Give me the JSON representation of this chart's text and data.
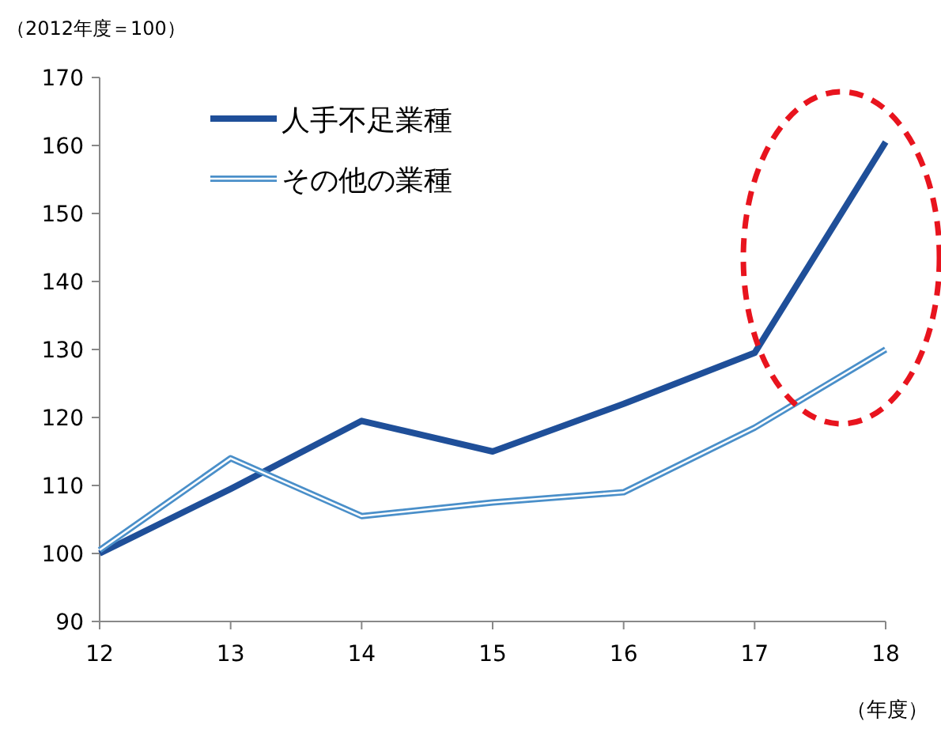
{
  "chart_data": {
    "type": "line",
    "ylabel": "（2012年度＝100）",
    "xlabel": "（年度）",
    "categories": [
      "12",
      "13",
      "14",
      "15",
      "16",
      "17",
      "18"
    ],
    "series": [
      {
        "name": "人手不足業種",
        "color": "#1f4f99",
        "values": [
          100,
          109.5,
          119.5,
          115,
          122,
          129.5,
          160.5
        ]
      },
      {
        "name": "その他の業種",
        "color": "#4a8fc9",
        "values": [
          100.5,
          114,
          105.5,
          107.5,
          109,
          118.5,
          130
        ]
      }
    ],
    "ylim": [
      90,
      170
    ],
    "yticks": [
      90,
      100,
      110,
      120,
      130,
      140,
      150,
      160,
      170
    ],
    "grid": false,
    "legend": "top left",
    "marker": "none",
    "line_style": "solid"
  }
}
